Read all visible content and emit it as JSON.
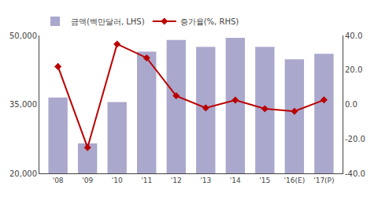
{
  "chart_data": {
    "type": "bar",
    "categories": [
      "'08",
      "'09",
      "'10",
      "'11",
      "'12",
      "'13",
      "'14",
      "'15",
      "'16(E)",
      "'17(P)"
    ],
    "series": [
      {
        "name": "금액(백만달러, LHS)",
        "type": "bar",
        "color": "#aaa8cc",
        "values": [
          36500,
          26500,
          35500,
          46500,
          49000,
          47500,
          49500,
          47500,
          44800,
          46000
        ]
      },
      {
        "name": "증가율(%, RHS)",
        "type": "line",
        "color": "#bb0000",
        "marker": "diamond",
        "axis": "y2",
        "values": [
          22.0,
          -25.0,
          35.0,
          27.0,
          5.0,
          -2.0,
          2.5,
          -2.5,
          -4.0,
          2.6
        ]
      }
    ],
    "ylim": [
      20000,
      50000
    ],
    "yticks": [
      {
        "value": 20000,
        "label": "20,000"
      },
      {
        "value": 35000,
        "label": "35,000"
      },
      {
        "value": 50000,
        "label": "50,000"
      }
    ],
    "y2lim": [
      -40.0,
      40.0
    ],
    "y2ticks": [
      {
        "value": -40.0,
        "label": "-40.0"
      },
      {
        "value": -20.0,
        "label": "-20.0"
      },
      {
        "value": 0.0,
        "label": "0.0"
      },
      {
        "value": 20.0,
        "label": "20.0"
      },
      {
        "value": 40.0,
        "label": "40.0"
      }
    ],
    "legend": "upper left",
    "grid": false
  }
}
